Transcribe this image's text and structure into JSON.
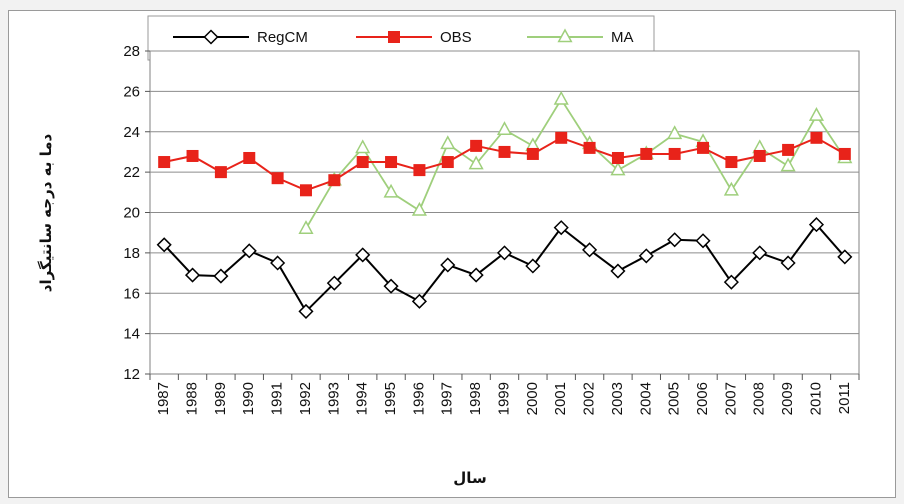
{
  "chart_data": {
    "type": "line",
    "x": [
      1987,
      1988,
      1989,
      1990,
      1991,
      1992,
      1993,
      1994,
      1995,
      1996,
      1997,
      1998,
      1999,
      2000,
      2001,
      2002,
      2003,
      2004,
      2005,
      2006,
      2007,
      2008,
      2009,
      2010,
      2011
    ],
    "x_tick_labels": [
      "1987",
      "1988",
      "1989",
      "1990",
      "1991",
      "1992",
      "1993",
      "1994",
      "1995",
      "1996",
      "1997",
      "1998",
      "1999",
      "2000",
      "2001",
      "2002",
      "2003",
      "2004",
      "2005",
      "2006",
      "2007",
      "2008",
      "2009",
      "2010",
      "2011"
    ],
    "series": [
      {
        "name": "RegCM",
        "color": "#000000",
        "marker": "diamond-open",
        "values": [
          18.4,
          16.9,
          16.85,
          18.1,
          17.5,
          15.1,
          16.5,
          17.9,
          16.35,
          15.6,
          17.4,
          16.9,
          18.0,
          17.35,
          19.25,
          18.15,
          17.1,
          17.85,
          18.65,
          18.6,
          16.55,
          18.0,
          17.5,
          19.4,
          17.8
        ]
      },
      {
        "name": "OBS",
        "color": "#e8231a",
        "marker": "square-filled",
        "values": [
          22.5,
          22.8,
          22.0,
          22.7,
          21.7,
          21.1,
          21.6,
          22.5,
          22.5,
          22.1,
          22.5,
          23.3,
          23.0,
          22.9,
          23.7,
          23.2,
          22.7,
          22.9,
          22.9,
          23.2,
          22.5,
          22.8,
          23.1,
          23.7,
          22.9
        ]
      },
      {
        "name": "MA",
        "color": "#9fcf7c",
        "marker": "triangle-open",
        "values": [
          null,
          null,
          null,
          null,
          null,
          19.2,
          21.6,
          23.2,
          21.0,
          20.1,
          23.4,
          22.4,
          24.1,
          23.3,
          25.6,
          23.4,
          22.1,
          22.9,
          23.9,
          23.5,
          21.1,
          23.2,
          22.3,
          24.8,
          22.7
        ]
      }
    ],
    "ylim": [
      12,
      28
    ],
    "y_ticks": [
      12,
      14,
      16,
      18,
      20,
      22,
      24,
      26,
      28
    ],
    "y_tick_labels": [
      "12",
      "14",
      "16",
      "18",
      "20",
      "22",
      "24",
      "26",
      "28"
    ],
    "xlabel": "سال",
    "ylabel": "دما به درجه سانتیگراد",
    "grid": true,
    "legend_position": "top"
  }
}
